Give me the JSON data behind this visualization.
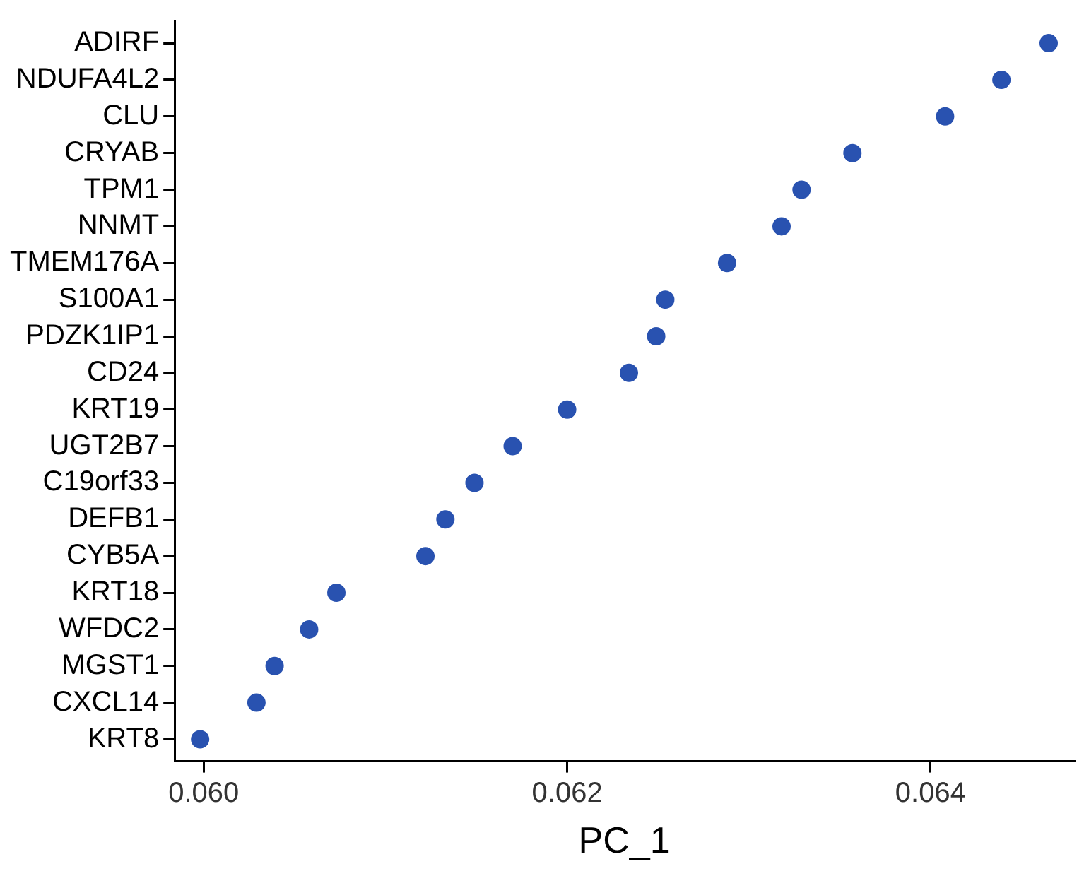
{
  "chart_data": {
    "type": "scatter",
    "xlabel": "PC_1",
    "categories": [
      "ADIRF",
      "NDUFA4L2",
      "CLU",
      "CRYAB",
      "TPM1",
      "NNMT",
      "TMEM176A",
      "S100A1",
      "PDZK1IP1",
      "CD24",
      "KRT19",
      "UGT2B7",
      "C19orf33",
      "DEFB1",
      "CYB5A",
      "KRT18",
      "WFDC2",
      "MGST1",
      "CXCL14",
      "KRT8"
    ],
    "series": [
      {
        "color": "#2952b0",
        "values": [
          0.06465,
          0.06439,
          0.06408,
          0.06357,
          0.06329,
          0.06318,
          0.06288,
          0.06254,
          0.06249,
          0.06234,
          0.062,
          0.0617,
          0.06149,
          0.06133,
          0.06122,
          0.06073,
          0.06058,
          0.06039,
          0.06029,
          0.05998
        ]
      }
    ],
    "orientation": "horizontal",
    "xlim": [
      0.05984,
      0.06479
    ],
    "xticks": [
      {
        "value": 0.06,
        "label": "0.060"
      },
      {
        "value": 0.062,
        "label": "0.062"
      },
      {
        "value": 0.064,
        "label": "0.064"
      }
    ],
    "grid": false,
    "legend": false,
    "marker": "circle"
  }
}
